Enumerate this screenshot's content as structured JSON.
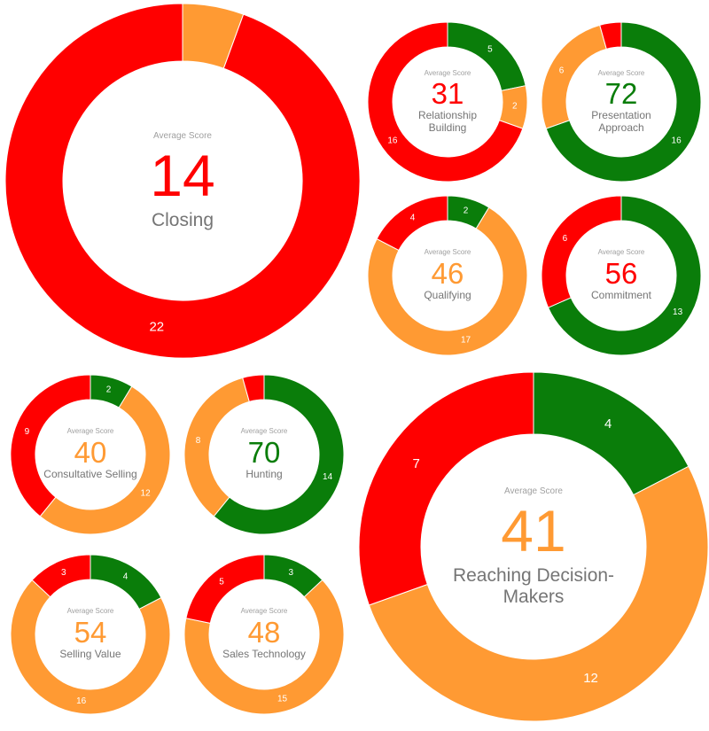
{
  "colors": {
    "green": "#0a7d0a",
    "orange": "#ff9a33",
    "red": "#ff0000",
    "title_gray": "#757575",
    "label_gray": "#a0a0a0"
  },
  "chart_data": [
    {
      "id": "closing",
      "type": "pie",
      "variant": "donut",
      "avg_label": "Average Score",
      "score": "14",
      "score_color": "red",
      "title": "Closing",
      "slices": [
        {
          "band": "green",
          "value": 0,
          "label": ""
        },
        {
          "band": "orange",
          "value": 1.3,
          "label": ""
        },
        {
          "band": "red",
          "value": 22,
          "label": "22"
        }
      ]
    },
    {
      "id": "relationship-building",
      "type": "pie",
      "variant": "donut",
      "avg_label": "Average Score",
      "score": "31",
      "score_color": "red",
      "title": "Relationship Building",
      "slices": [
        {
          "band": "green",
          "value": 5,
          "label": "5"
        },
        {
          "band": "orange",
          "value": 2,
          "label": "2"
        },
        {
          "band": "red",
          "value": 16,
          "label": "16"
        }
      ]
    },
    {
      "id": "presentation-approach",
      "type": "pie",
      "variant": "donut",
      "avg_label": "Average Score",
      "score": "72",
      "score_color": "green",
      "title": "Presentation Approach",
      "slices": [
        {
          "band": "green",
          "value": 16,
          "label": "16"
        },
        {
          "band": "orange",
          "value": 6,
          "label": "6"
        },
        {
          "band": "red",
          "value": 1,
          "label": ""
        }
      ]
    },
    {
      "id": "qualifying",
      "type": "pie",
      "variant": "donut",
      "avg_label": "Average Score",
      "score": "46",
      "score_color": "orange",
      "title": "Qualifying",
      "slices": [
        {
          "band": "green",
          "value": 2,
          "label": "2"
        },
        {
          "band": "orange",
          "value": 17,
          "label": "17"
        },
        {
          "band": "red",
          "value": 4,
          "label": "4"
        }
      ]
    },
    {
      "id": "commitment",
      "type": "pie",
      "variant": "donut",
      "avg_label": "Average Score",
      "score": "56",
      "score_color": "red",
      "title": "Commitment",
      "slices": [
        {
          "band": "green",
          "value": 13,
          "label": "13"
        },
        {
          "band": "orange",
          "value": 0,
          "label": ""
        },
        {
          "band": "red",
          "value": 6,
          "label": "6"
        }
      ]
    },
    {
      "id": "consultative-selling",
      "type": "pie",
      "variant": "donut",
      "avg_label": "Average Score",
      "score": "40",
      "score_color": "orange",
      "title": "Consultative Selling",
      "slices": [
        {
          "band": "green",
          "value": 2,
          "label": "2"
        },
        {
          "band": "orange",
          "value": 12,
          "label": "12"
        },
        {
          "band": "red",
          "value": 9,
          "label": "9"
        }
      ]
    },
    {
      "id": "hunting",
      "type": "pie",
      "variant": "donut",
      "avg_label": "Average Score",
      "score": "70",
      "score_color": "green",
      "title": "Hunting",
      "slices": [
        {
          "band": "green",
          "value": 14,
          "label": "14"
        },
        {
          "band": "orange",
          "value": 8,
          "label": "8"
        },
        {
          "band": "red",
          "value": 1,
          "label": ""
        }
      ]
    },
    {
      "id": "reaching-decision-makers",
      "type": "pie",
      "variant": "donut",
      "avg_label": "Average Score",
      "score": "41",
      "score_color": "orange",
      "title": "Reaching Decision-Makers",
      "slices": [
        {
          "band": "green",
          "value": 4,
          "label": "4"
        },
        {
          "band": "orange",
          "value": 12,
          "label": "12"
        },
        {
          "band": "red",
          "value": 7,
          "label": "7"
        }
      ]
    },
    {
      "id": "selling-value",
      "type": "pie",
      "variant": "donut",
      "avg_label": "Average Score",
      "score": "54",
      "score_color": "orange",
      "title": "Selling Value",
      "slices": [
        {
          "band": "green",
          "value": 4,
          "label": "4"
        },
        {
          "band": "orange",
          "value": 16,
          "label": "16"
        },
        {
          "band": "red",
          "value": 3,
          "label": "3"
        }
      ]
    },
    {
      "id": "sales-technology",
      "type": "pie",
      "variant": "donut",
      "avg_label": "Average Score",
      "score": "48",
      "score_color": "orange",
      "title": "Sales Technology",
      "slices": [
        {
          "band": "green",
          "value": 3,
          "label": "3"
        },
        {
          "band": "orange",
          "value": 15,
          "label": "15"
        },
        {
          "band": "red",
          "value": 5,
          "label": "5"
        }
      ]
    }
  ]
}
